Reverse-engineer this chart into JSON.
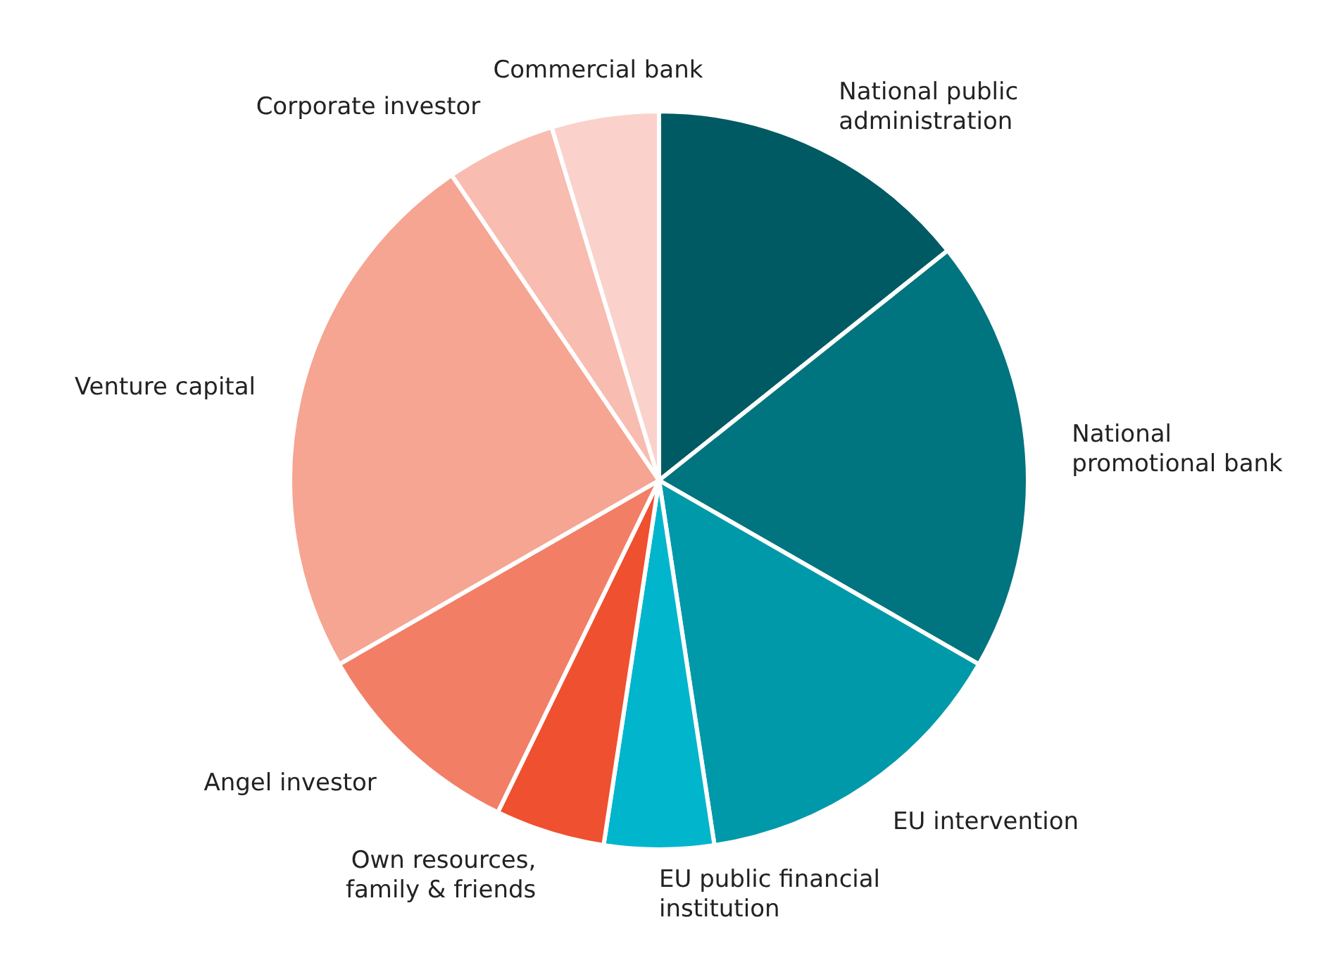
{
  "chart_data": {
    "type": "pie",
    "categories": [
      "National public administration",
      "National promotional bank",
      "EU intervention",
      "EU public financial institution",
      "Own resources, family & friends",
      "Angel investor",
      "Venture capital",
      "Corporate investor",
      "Commercial bank"
    ],
    "values": [
      14.3,
      19.0,
      14.3,
      4.8,
      4.8,
      9.5,
      23.8,
      4.8,
      4.7
    ],
    "colors": [
      "#005a64",
      "#00747f",
      "#0099aa",
      "#00b5cc",
      "#ef5030",
      "#f27e66",
      "#f5a592",
      "#f8bcb0",
      "#fad2cb"
    ]
  }
}
